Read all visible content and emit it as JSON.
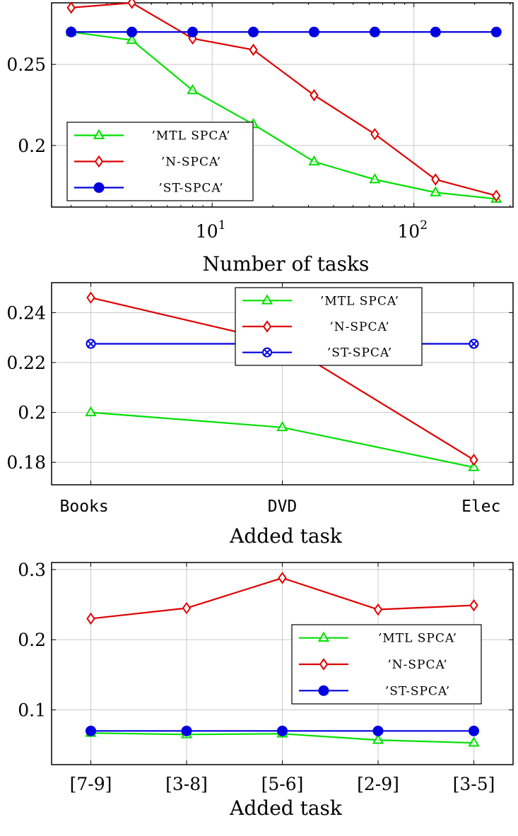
{
  "chart_data": [
    {
      "type": "line",
      "xscale": "log",
      "xlabel": "Number of tasks",
      "ylabel": "",
      "xlim": [
        1.6,
        310
      ],
      "ylim": [
        0.162,
        0.288
      ],
      "xticks": [
        {
          "value": 10,
          "base": "10",
          "exp": "1"
        },
        {
          "value": 100,
          "base": "10",
          "exp": "2"
        }
      ],
      "yticks": [
        {
          "value": 0.2,
          "label": "0.2"
        },
        {
          "value": 0.25,
          "label": "0.25"
        }
      ],
      "grid": true,
      "legend_position": "bottom-left",
      "x": [
        2,
        4,
        8,
        16,
        32,
        64,
        128,
        256
      ],
      "series": [
        {
          "name": "’MTL SPCA’",
          "color": "#00e000",
          "marker": "triangle",
          "values": [
            0.27,
            0.265,
            0.234,
            0.213,
            0.19,
            0.179,
            0.171,
            0.167
          ]
        },
        {
          "name": "’N-SPCA’",
          "color": "#e00000",
          "marker": "diamond",
          "values": [
            0.285,
            0.288,
            0.266,
            0.259,
            0.231,
            0.207,
            0.179,
            0.169
          ]
        },
        {
          "name": "’ST-SPCA’",
          "color": "#0000e0",
          "marker": "circle",
          "values": [
            0.27,
            0.27,
            0.27,
            0.27,
            0.27,
            0.27,
            0.27,
            0.27
          ]
        }
      ]
    },
    {
      "type": "line",
      "xlabel": "Added task",
      "ylabel": "",
      "categories": [
        "Books",
        "DVD",
        "Elec"
      ],
      "ylim": [
        0.171,
        0.252
      ],
      "yticks": [
        {
          "value": 0.18,
          "label": "0.18"
        },
        {
          "value": 0.2,
          "label": "0.2"
        },
        {
          "value": 0.22,
          "label": "0.22"
        },
        {
          "value": 0.24,
          "label": "0.24"
        }
      ],
      "grid": true,
      "legend_position": "top-right",
      "series": [
        {
          "name": "’MTL SPCA’",
          "color": "#00e000",
          "marker": "triangle",
          "values": [
            0.2,
            0.194,
            0.178
          ]
        },
        {
          "name": "’N-SPCA’",
          "color": "#e00000",
          "marker": "diamond",
          "values": [
            0.246,
            0.228,
            0.181
          ]
        },
        {
          "name": "’ST-SPCA’",
          "color": "#0000e0",
          "marker": "otimes",
          "values": [
            0.2275,
            0.2275,
            0.2275
          ]
        }
      ]
    },
    {
      "type": "line",
      "xlabel": "Added task",
      "ylabel": "",
      "categories": [
        "[7-9]",
        "[3-8]",
        "[5-6]",
        "[2-9]",
        "[3-5]"
      ],
      "ylim": [
        0.022,
        0.31
      ],
      "yticks": [
        {
          "value": 0.1,
          "label": "0.1"
        },
        {
          "value": 0.2,
          "label": "0.2"
        },
        {
          "value": 0.3,
          "label": "0.3"
        }
      ],
      "grid": true,
      "legend_position": "middle-right",
      "series": [
        {
          "name": "’MTL SPCA’",
          "color": "#00e000",
          "marker": "triangle",
          "values": [
            0.067,
            0.065,
            0.066,
            0.057,
            0.053
          ]
        },
        {
          "name": "’N-SPCA’",
          "color": "#e00000",
          "marker": "diamond",
          "values": [
            0.23,
            0.245,
            0.288,
            0.243,
            0.249
          ]
        },
        {
          "name": "’ST-SPCA’",
          "color": "#0000e0",
          "marker": "circle",
          "values": [
            0.07,
            0.07,
            0.07,
            0.07,
            0.07
          ]
        }
      ]
    }
  ]
}
